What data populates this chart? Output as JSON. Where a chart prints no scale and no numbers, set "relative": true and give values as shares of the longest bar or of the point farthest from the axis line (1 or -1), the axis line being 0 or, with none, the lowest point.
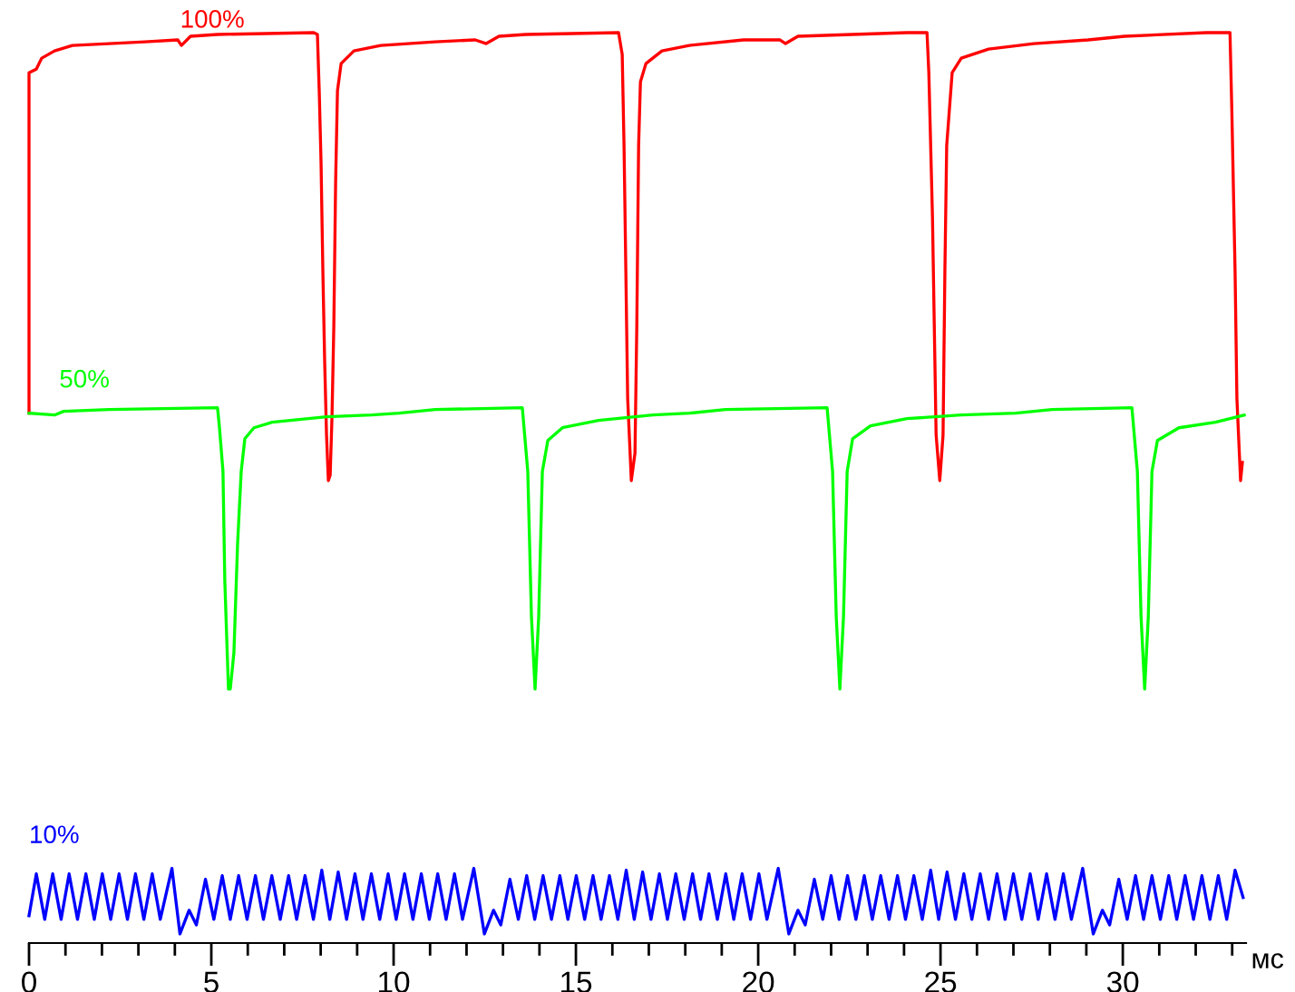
{
  "chart_data": {
    "type": "line",
    "relative": true,
    "xlabel": "мс",
    "xlim": [
      0,
      33.38
    ],
    "xticks": [
      0,
      {
        "value": 1,
        "label": null
      },
      {
        "value": 2,
        "label": null
      },
      {
        "value": 3,
        "label": null
      },
      {
        "value": 4,
        "label": null
      },
      5,
      {
        "value": 6,
        "label": null
      },
      {
        "value": 7,
        "label": null
      },
      {
        "value": 8,
        "label": null
      },
      {
        "value": 9,
        "label": null
      },
      10,
      {
        "value": 11,
        "label": null
      },
      {
        "value": 12,
        "label": null
      },
      {
        "value": 13,
        "label": null
      },
      {
        "value": 14,
        "label": null
      },
      15,
      {
        "value": 16,
        "label": null
      },
      {
        "value": 17,
        "label": null
      },
      {
        "value": 18,
        "label": null
      },
      {
        "value": 19,
        "label": null
      },
      20,
      {
        "value": 21,
        "label": null
      },
      {
        "value": 22,
        "label": null
      },
      {
        "value": 23,
        "label": null
      },
      {
        "value": 24,
        "label": null
      },
      25,
      {
        "value": 26,
        "label": null
      },
      {
        "value": 27,
        "label": null
      },
      {
        "value": 28,
        "label": null
      },
      {
        "value": 29,
        "label": null
      },
      30,
      {
        "value": 31,
        "label": null
      },
      {
        "value": 32,
        "label": null
      },
      {
        "value": 33,
        "label": null
      }
    ],
    "grid": false,
    "legend": false,
    "marker": "none",
    "line_style": "solid",
    "series": [
      {
        "name": "100%",
        "color": "#ff0000",
        "x": [
          0,
          0,
          0.2,
          0.35,
          0.7,
          1.19,
          2.19,
          3.18,
          4.08,
          4.18,
          4.43,
          5.17,
          7.81,
          7.91,
          7.96,
          8.01,
          8.06,
          8.11,
          8.16,
          8.21,
          8.26,
          8.31,
          8.36,
          8.41,
          8.46,
          8.56,
          8.91,
          9.65,
          11.14,
          12.24,
          12.54,
          12.89,
          13.63,
          16.17,
          16.27,
          16.32,
          16.37,
          16.42,
          16.52,
          16.62,
          16.67,
          16.72,
          16.77,
          16.92,
          17.36,
          18.11,
          19.6,
          20.6,
          20.75,
          21.09,
          24.08,
          24.63,
          24.68,
          24.78,
          24.83,
          24.88,
          24.98,
          25.07,
          25.12,
          25.17,
          25.32,
          25.57,
          26.32,
          27.56,
          29.05,
          29.55,
          30.05,
          32.29,
          32.94,
          32.99,
          33.08,
          33.13,
          33.23,
          33.28
        ],
        "values": [
          0.582,
          0.956,
          0.96,
          0.972,
          0.98,
          0.986,
          0.988,
          0.99,
          0.992,
          0.986,
          0.996,
          0.998,
          1,
          0.998,
          0.936,
          0.857,
          0.737,
          0.637,
          0.558,
          0.508,
          0.514,
          0.578,
          0.677,
          0.837,
          0.936,
          0.966,
          0.98,
          0.986,
          0.99,
          0.992,
          0.988,
          0.996,
          0.998,
          1,
          0.976,
          0.876,
          0.737,
          0.598,
          0.508,
          0.538,
          0.677,
          0.876,
          0.946,
          0.966,
          0.98,
          0.986,
          0.992,
          0.992,
          0.988,
          0.996,
          1,
          1,
          0.956,
          0.797,
          0.677,
          0.558,
          0.508,
          0.558,
          0.737,
          0.876,
          0.956,
          0.972,
          0.982,
          0.988,
          0.992,
          0.994,
          0.996,
          1,
          1,
          0.916,
          0.737,
          0.598,
          0.508,
          0.528
        ]
      },
      {
        "name": "50%",
        "color": "#00ff00",
        "x": [
          0,
          0.7,
          0.95,
          2.19,
          5.17,
          5.22,
          5.32,
          5.37,
          5.47,
          5.52,
          5.62,
          5.72,
          5.82,
          5.92,
          6.17,
          6.67,
          8.16,
          9.4,
          10.15,
          11.14,
          13.53,
          13.68,
          13.78,
          13.88,
          13.98,
          14.08,
          14.23,
          14.63,
          15.62,
          17.11,
          18.11,
          19.1,
          21.89,
          22.04,
          22.14,
          22.24,
          22.34,
          22.44,
          22.59,
          23.08,
          24.08,
          25.57,
          27.06,
          28.06,
          30.25,
          30.4,
          30.5,
          30.6,
          30.7,
          30.8,
          30.95,
          31.54,
          32.54,
          33.33
        ],
        "values": [
          0.582,
          0.58,
          0.584,
          0.586,
          0.588,
          0.568,
          0.518,
          0.398,
          0.279,
          0.279,
          0.319,
          0.438,
          0.518,
          0.554,
          0.566,
          0.572,
          0.578,
          0.58,
          0.582,
          0.586,
          0.588,
          0.518,
          0.359,
          0.279,
          0.359,
          0.518,
          0.552,
          0.566,
          0.574,
          0.58,
          0.582,
          0.586,
          0.588,
          0.518,
          0.359,
          0.279,
          0.359,
          0.518,
          0.554,
          0.568,
          0.576,
          0.58,
          0.582,
          0.586,
          0.588,
          0.518,
          0.359,
          0.279,
          0.359,
          0.518,
          0.552,
          0.566,
          0.572,
          0.58
        ]
      },
      {
        "name": "10%",
        "color": "#0000ff",
        "x": [
          0,
          0.2,
          0.43,
          0.65,
          0.88,
          1.1,
          1.33,
          1.56,
          1.79,
          2.01,
          2.24,
          2.47,
          2.7,
          2.92,
          3.15,
          3.38,
          3.6,
          3.92,
          4.14,
          4.39,
          4.59,
          4.84,
          5.07,
          5.3,
          5.52,
          5.75,
          5.98,
          6.21,
          6.43,
          6.66,
          6.89,
          7.12,
          7.34,
          7.57,
          7.8,
          8.03,
          8.25,
          8.48,
          8.71,
          8.94,
          9.16,
          9.39,
          9.62,
          9.85,
          10.07,
          10.3,
          10.53,
          10.76,
          10.98,
          11.21,
          11.44,
          11.67,
          11.89,
          12.2,
          12.49,
          12.74,
          12.94,
          13.19,
          13.42,
          13.65,
          13.87,
          14.1,
          14.33,
          14.56,
          14.78,
          15.01,
          15.24,
          15.47,
          15.69,
          15.92,
          16.15,
          16.38,
          16.6,
          16.83,
          17.06,
          17.29,
          17.51,
          17.74,
          17.97,
          18.2,
          18.42,
          18.65,
          18.88,
          19.11,
          19.33,
          19.56,
          19.79,
          20.02,
          20.24,
          20.55,
          20.84,
          21.09,
          21.29,
          21.54,
          21.77,
          22.0,
          22.22,
          22.45,
          22.68,
          22.91,
          23.13,
          23.36,
          23.59,
          23.82,
          24.04,
          24.27,
          24.5,
          24.73,
          24.95,
          25.18,
          25.41,
          25.64,
          25.86,
          26.09,
          26.32,
          26.55,
          26.77,
          27.0,
          27.23,
          27.46,
          27.68,
          27.91,
          28.14,
          28.37,
          28.59,
          28.9,
          29.19,
          29.44,
          29.64,
          29.89,
          30.12,
          30.35,
          30.57,
          30.8,
          31.03,
          31.26,
          31.48,
          31.71,
          31.94,
          32.17,
          32.39,
          32.62,
          32.85,
          33.08,
          33.3
        ],
        "values": [
          0.03,
          0.076,
          0.026,
          0.076,
          0.026,
          0.076,
          0.026,
          0.076,
          0.026,
          0.076,
          0.026,
          0.076,
          0.026,
          0.076,
          0.026,
          0.076,
          0.026,
          0.082,
          0.01,
          0.036,
          0.02,
          0.07,
          0.026,
          0.074,
          0.026,
          0.074,
          0.026,
          0.074,
          0.026,
          0.074,
          0.026,
          0.074,
          0.026,
          0.074,
          0.026,
          0.08,
          0.026,
          0.078,
          0.026,
          0.076,
          0.026,
          0.076,
          0.026,
          0.076,
          0.026,
          0.076,
          0.026,
          0.076,
          0.026,
          0.076,
          0.026,
          0.076,
          0.026,
          0.082,
          0.01,
          0.036,
          0.02,
          0.07,
          0.026,
          0.074,
          0.026,
          0.074,
          0.026,
          0.074,
          0.026,
          0.074,
          0.026,
          0.074,
          0.026,
          0.074,
          0.026,
          0.08,
          0.026,
          0.078,
          0.026,
          0.076,
          0.026,
          0.076,
          0.026,
          0.076,
          0.026,
          0.076,
          0.026,
          0.076,
          0.026,
          0.076,
          0.026,
          0.076,
          0.026,
          0.082,
          0.01,
          0.036,
          0.02,
          0.07,
          0.026,
          0.074,
          0.026,
          0.074,
          0.026,
          0.074,
          0.026,
          0.074,
          0.026,
          0.074,
          0.026,
          0.074,
          0.026,
          0.08,
          0.026,
          0.078,
          0.026,
          0.076,
          0.026,
          0.076,
          0.026,
          0.076,
          0.026,
          0.076,
          0.026,
          0.076,
          0.026,
          0.076,
          0.026,
          0.076,
          0.026,
          0.082,
          0.01,
          0.036,
          0.02,
          0.07,
          0.026,
          0.074,
          0.026,
          0.074,
          0.026,
          0.074,
          0.026,
          0.074,
          0.026,
          0.074,
          0.026,
          0.074,
          0.026,
          0.08,
          0.05
        ]
      }
    ]
  }
}
